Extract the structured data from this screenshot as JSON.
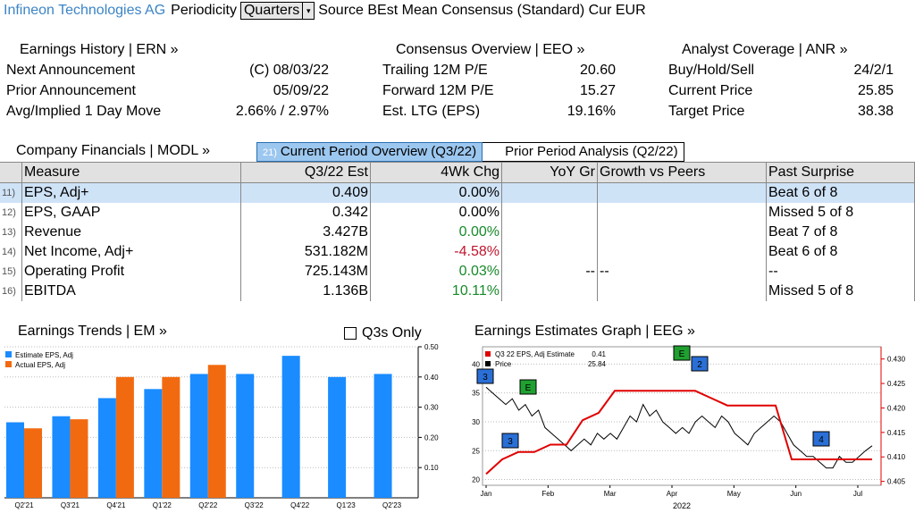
{
  "header": {
    "company": "Infineon Technologies AG",
    "periodicity_label": "Periodicity",
    "periodicity_value": "Quarters",
    "dropdown_glyph": "▾",
    "source_text": "Source BEst Mean Consensus (Standard) Cur EUR"
  },
  "earnings_history": {
    "title": "Earnings History | ERN »",
    "rows": [
      {
        "label": "Next Announcement",
        "value": "(C)  08/03/22"
      },
      {
        "label": "Prior Announcement",
        "value": "05/09/22"
      },
      {
        "label": "Avg/Implied 1 Day Move",
        "value": "2.66% / 2.97%"
      }
    ]
  },
  "consensus": {
    "title": "Consensus Overview | EEO »",
    "rows": [
      {
        "label": "Trailing 12M P/E",
        "value": "20.60"
      },
      {
        "label": "Forward 12M P/E",
        "value": "15.27"
      },
      {
        "label": "Est. LTG (EPS)",
        "value": "19.16%"
      }
    ]
  },
  "analyst": {
    "title": "Analyst Coverage | ANR »",
    "rows": [
      {
        "label": "Buy/Hold/Sell",
        "value": "24/2/1"
      },
      {
        "label": "Current Price",
        "value": "25.85"
      },
      {
        "label": "Target Price",
        "value": "38.38"
      }
    ]
  },
  "financials": {
    "title": "Company Financials | MODL »",
    "tab_current_num": "21)",
    "tab_current": "Current Period Overview (Q3/22)",
    "tab_prior": "Prior Period Analysis (Q2/22)",
    "headers": [
      "Measure",
      "Q3/22 Est",
      "4Wk Chg",
      "YoY Gr",
      "Growth vs Peers",
      "Past Surprise"
    ],
    "rows": [
      {
        "num": "11)",
        "measure": "EPS, Adj+",
        "est": "0.409",
        "chg": "0.00%",
        "yoy": "",
        "peers": "",
        "surprise": "Beat 6 of 8"
      },
      {
        "num": "12)",
        "measure": "EPS, GAAP",
        "est": "0.342",
        "chg": "0.00%",
        "yoy": "",
        "peers": "",
        "surprise": "Missed 5 of 8"
      },
      {
        "num": "13)",
        "measure": "Revenue",
        "est": "3.427B",
        "chg": "0.00%",
        "yoy": "",
        "peers": "",
        "surprise": "Beat 7 of 8"
      },
      {
        "num": "14)",
        "measure": "Net Income, Adj+",
        "est": "531.182M",
        "chg": "-4.58%",
        "yoy": "",
        "peers": "",
        "surprise": "Beat 6 of 8"
      },
      {
        "num": "15)",
        "measure": "Operating Profit",
        "est": "725.143M",
        "chg": "0.03%",
        "yoy": "--",
        "peers": "--",
        "surprise": "--"
      },
      {
        "num": "16)",
        "measure": "EBITDA",
        "est": "1.136B",
        "chg": "10.11%",
        "yoy": "",
        "peers": "",
        "surprise": "Missed 5 of 8"
      }
    ]
  },
  "trends": {
    "title": "Earnings Trends | EM »",
    "checkbox_label": "Q3s Only"
  },
  "estimates_graph": {
    "title": "Earnings Estimates Graph | EEG »",
    "legend": [
      {
        "name": "Q3 22 EPS, Adj Estimate",
        "value": "0.41",
        "color": "#e00000"
      },
      {
        "name": "Price",
        "value": "25.84",
        "color": "#000000"
      }
    ],
    "year_label": "2022"
  },
  "colors": {
    "estimate": "#1a8cff",
    "actual": "#f26a10",
    "price_line": "#000000",
    "estimate_line": "#e00000",
    "event_blue": "#2a6fd6",
    "event_green": "#20a030",
    "accent": "#3b84c6"
  },
  "chart_data": [
    {
      "type": "bar",
      "categories": [
        "Q2'21",
        "Q3'21",
        "Q4'21",
        "Q1'22",
        "Q2'22",
        "Q3'22",
        "Q4'22",
        "Q1'23",
        "Q2'23"
      ],
      "series": [
        {
          "name": "Estimate EPS, Adj",
          "values": [
            0.25,
            0.27,
            0.33,
            0.36,
            0.41,
            0.41,
            0.47,
            0.4,
            0.41
          ]
        },
        {
          "name": "Actual EPS, Adj",
          "values": [
            0.23,
            0.26,
            0.4,
            0.4,
            0.44,
            null,
            null,
            null,
            null
          ]
        }
      ],
      "ylim": [
        0,
        0.5
      ],
      "yticks": [
        "0.10",
        "0.20",
        "0.30",
        "0.40",
        "0.50"
      ],
      "axis_side": "right",
      "legend_position": "top-left"
    },
    {
      "type": "line",
      "x_labels": [
        "Jan",
        "Feb",
        "Mar",
        "Apr",
        "May",
        "Jun",
        "Jul"
      ],
      "left_axis": {
        "ticks": [
          20,
          25,
          30,
          35,
          40
        ],
        "range": [
          19,
          43
        ]
      },
      "right_axis": {
        "ticks": [
          "0.405",
          "0.410",
          "0.415",
          "0.420",
          "0.425",
          "0.430"
        ],
        "range": [
          0.4042,
          0.4325
        ]
      },
      "series": [
        {
          "name": "Price",
          "axis": "left",
          "values": [
            36,
            35,
            34,
            33,
            34,
            32,
            33,
            31,
            32,
            29,
            28,
            27,
            26,
            25,
            26,
            27,
            26,
            28,
            27,
            28,
            27,
            29,
            31,
            30,
            33,
            31,
            32,
            30,
            29,
            28,
            29,
            28,
            30,
            31,
            30,
            29,
            31,
            30,
            28,
            27,
            26,
            28,
            29,
            30,
            31,
            30,
            28,
            26,
            25,
            24,
            24,
            23,
            22,
            22,
            24,
            23,
            23,
            24,
            25,
            25.84
          ]
        },
        {
          "name": "Q3 22 EPS, Adj Estimate",
          "axis": "right",
          "values": [
            0.4065,
            0.4095,
            0.411,
            0.411,
            0.4125,
            0.4125,
            0.4175,
            0.419,
            0.4235,
            0.4235,
            0.4235,
            0.4235,
            0.4235,
            0.4235,
            0.422,
            0.4205,
            0.4205,
            0.4205,
            0.4205,
            0.4095,
            0.4095,
            0.4095,
            0.4095,
            0.4095,
            0.4095
          ]
        }
      ],
      "events": [
        {
          "label": "3",
          "color": "blue"
        },
        {
          "label": "E",
          "color": "green"
        },
        {
          "label": "3",
          "color": "blue"
        },
        {
          "label": "E",
          "color": "green"
        },
        {
          "label": "2",
          "color": "blue"
        },
        {
          "label": "4",
          "color": "blue"
        }
      ]
    }
  ]
}
